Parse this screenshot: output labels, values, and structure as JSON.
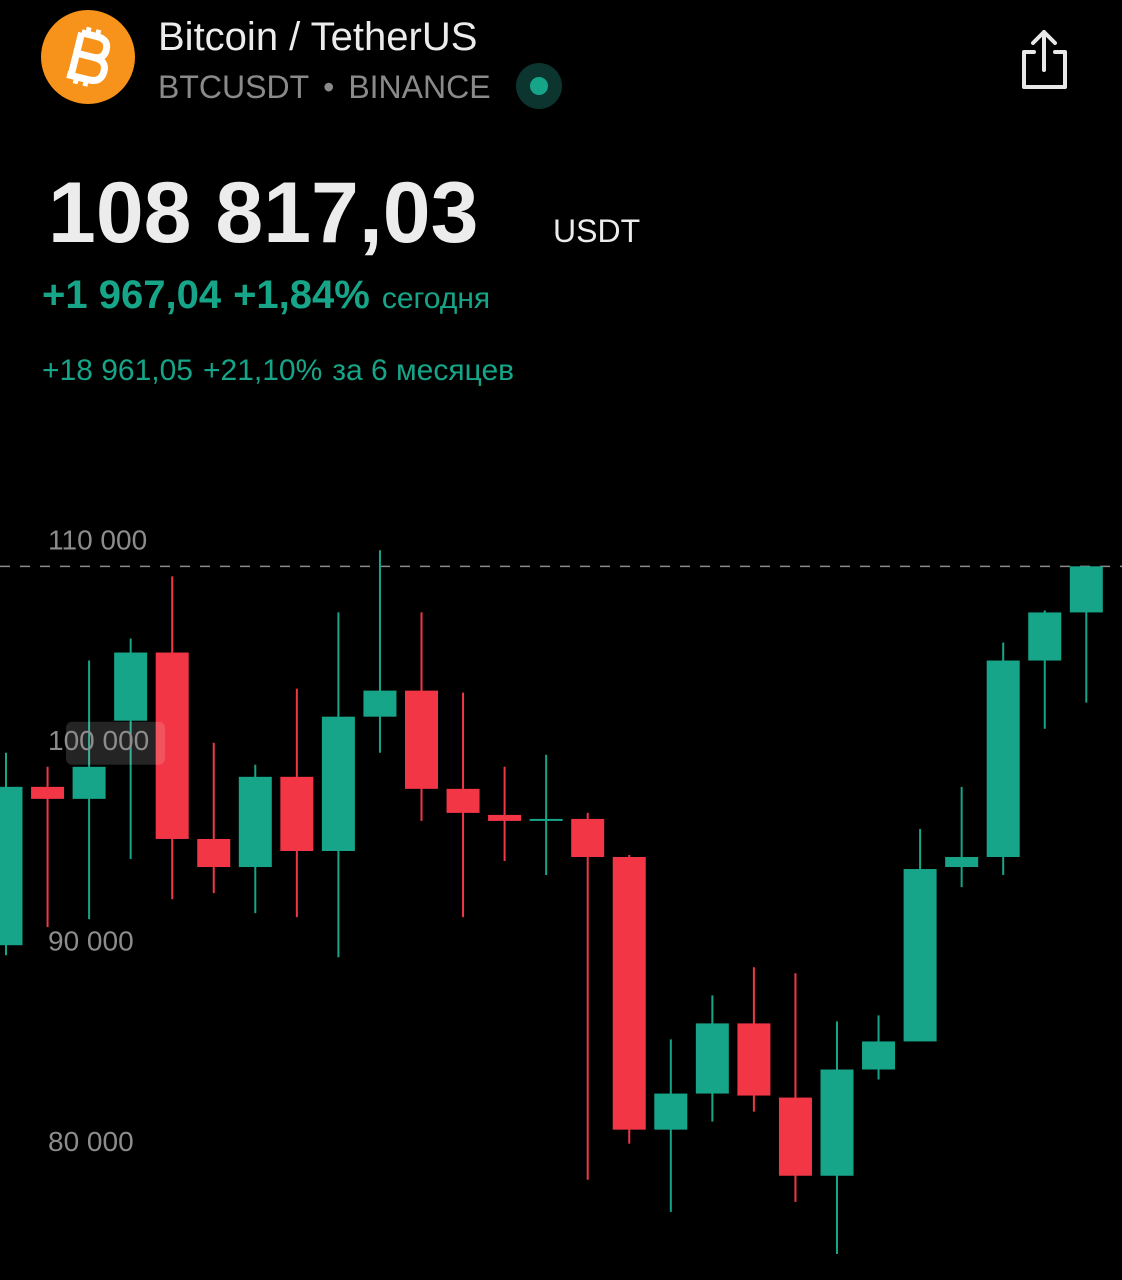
{
  "header": {
    "title": "Bitcoin / TetherUS",
    "symbol": "BTCUSDT",
    "separator": "•",
    "exchange": "BINANCE"
  },
  "quote": {
    "price": "108 817,03",
    "currency": "USDT",
    "change": "+1 967,04",
    "change_percent": "+1,84%",
    "change_period": "сегодня",
    "period_change": "+18 961,05",
    "period_change_percent": "+21,10%",
    "period_label": "за 6 месяцев"
  },
  "chart_data": {
    "type": "candlestick",
    "categories": [
      null,
      null,
      null,
      null,
      null,
      null,
      null,
      null,
      null,
      null,
      null,
      null,
      null,
      null,
      null,
      null,
      null,
      null,
      null,
      null,
      null,
      null,
      null,
      null,
      null,
      null,
      null
    ],
    "open": [
      89900,
      97800,
      97200,
      101100,
      104500,
      95200,
      93800,
      98300,
      94600,
      101300,
      102600,
      97700,
      96400,
      96100,
      96200,
      94300,
      80700,
      82500,
      86000,
      82300,
      78400,
      83700,
      85100,
      93800,
      94300,
      104100,
      106500
    ],
    "high": [
      99500,
      98800,
      104100,
      105200,
      108300,
      100000,
      98900,
      102700,
      106500,
      109600,
      106500,
      102500,
      98800,
      99400,
      96500,
      94400,
      85200,
      87400,
      88800,
      88500,
      86100,
      86400,
      95700,
      97800,
      105000,
      106600,
      108800
    ],
    "low": [
      89400,
      90800,
      91200,
      94200,
      92200,
      92500,
      91500,
      91300,
      89300,
      99500,
      96100,
      91300,
      94100,
      93400,
      78200,
      80000,
      76600,
      81100,
      81600,
      77100,
      74500,
      83200,
      85100,
      92800,
      93400,
      100700,
      102000
    ],
    "close": [
      97800,
      97200,
      98800,
      104500,
      95200,
      93800,
      98300,
      94600,
      101300,
      102600,
      97700,
      96500,
      96100,
      96200,
      94300,
      80700,
      82500,
      86000,
      82400,
      78400,
      83700,
      85100,
      93700,
      94300,
      104100,
      106500,
      108800
    ],
    "up_color": "#17a589",
    "down_color": "#f23645",
    "ylim": [
      73200,
      115600
    ],
    "yticks": [
      {
        "value": 80000,
        "label": "80 000"
      },
      {
        "value": 90000,
        "label": "90 000"
      },
      {
        "value": 100000,
        "label": "100 000"
      },
      {
        "value": 110000,
        "label": "110 000"
      }
    ]
  }
}
